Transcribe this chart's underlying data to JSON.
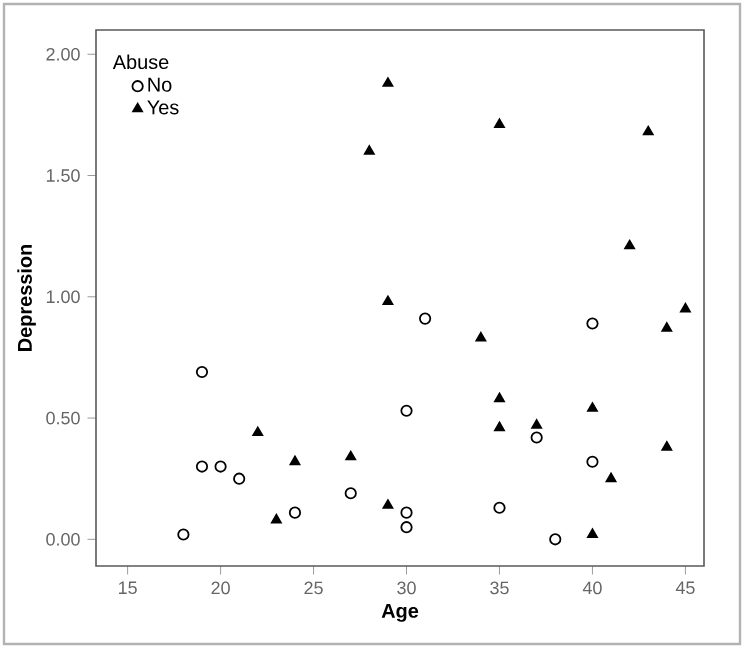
{
  "chart_data": {
    "type": "scatter",
    "xlabel": "Age",
    "ylabel": "Depression",
    "legend_title": "Abuse",
    "legend": "top left",
    "grid": false,
    "xlim": [
      13.3,
      46
    ],
    "ylim": [
      -0.11,
      2.1
    ],
    "xticks": [
      15,
      20,
      25,
      30,
      35,
      40,
      45
    ],
    "yticks": [
      {
        "value": 0,
        "label": "0.00"
      },
      {
        "value": 0.5,
        "label": "0.50"
      },
      {
        "value": 1,
        "label": "1.00"
      },
      {
        "value": 1.5,
        "label": "1.50"
      },
      {
        "value": 2,
        "label": "2.00"
      }
    ],
    "series": [
      {
        "name": "No",
        "color": "#000000",
        "marker": "circle",
        "x": [
          18,
          19,
          19,
          20,
          21,
          24,
          27,
          30,
          30,
          30,
          31,
          35,
          37,
          38,
          40,
          40
        ],
        "values": [
          0.02,
          0.69,
          0.3,
          0.3,
          0.25,
          0.11,
          0.19,
          0.53,
          0.11,
          0.05,
          0.91,
          0.13,
          0.42,
          0.0,
          0.89,
          0.32
        ]
      },
      {
        "name": "Yes",
        "color": "#000000",
        "marker": "triangle",
        "x": [
          22,
          23,
          24,
          27,
          28,
          29,
          29,
          29,
          34,
          35,
          35,
          35,
          37,
          40,
          40,
          41,
          42,
          43,
          44,
          44,
          45
        ],
        "values": [
          0.44,
          0.08,
          0.32,
          0.34,
          1.6,
          1.88,
          0.98,
          0.14,
          0.83,
          1.71,
          0.58,
          0.46,
          0.47,
          0.54,
          0.02,
          0.25,
          1.21,
          1.68,
          0.87,
          0.38,
          0.95
        ]
      }
    ]
  }
}
